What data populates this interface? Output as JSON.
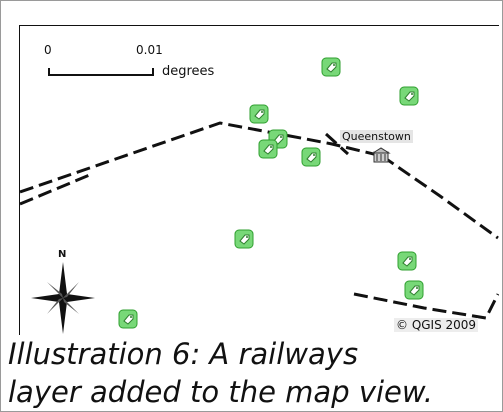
{
  "map": {
    "scale_bar": {
      "start_label": "0",
      "end_label": "0.01",
      "unit_label": "degrees"
    },
    "north_arrow_label": "N",
    "place_labels": [
      {
        "name": "Queenstown"
      }
    ],
    "copyright": "© QGIS 2009",
    "layers": [
      "railways",
      "points of interest",
      "places"
    ],
    "colors": {
      "railway": "#111111",
      "poi_fill": "#78d878",
      "poi_stroke": "#2f9f2f",
      "label_bg": "#e1e1e1"
    },
    "poi_icon": "tag-icon",
    "place_icon": "building-icon"
  },
  "caption": {
    "line1": "Illustration 6: A railways",
    "line2": "layer added to the map view."
  }
}
